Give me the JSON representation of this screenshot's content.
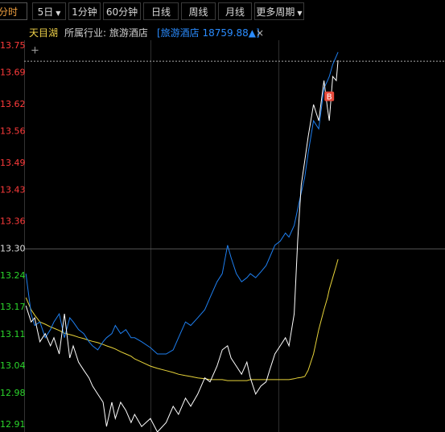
{
  "toolbar": {
    "items": [
      "分时",
      "5日",
      "1分钟",
      "60分钟",
      "日线",
      "周线",
      "月线",
      "更多周期"
    ],
    "selected": 0
  },
  "info": {
    "stock_name": "天目湖",
    "industry_label": "所属行业: 旅游酒店",
    "index_link": "[旅游酒店 18759.88▲]"
  },
  "chart_data": {
    "type": "line",
    "x": [
      1,
      4,
      6,
      9,
      12,
      15,
      17,
      20,
      23,
      26,
      28,
      31,
      34,
      37,
      39,
      42,
      45,
      47,
      50,
      52,
      55,
      58,
      61,
      63,
      67,
      72,
      76,
      81,
      85,
      88,
      92,
      95,
      99,
      103,
      106,
      110,
      113,
      116,
      118,
      121,
      124,
      127,
      129,
      132,
      135,
      138,
      140,
      143,
      146,
      149,
      151,
      154,
      156,
      158,
      160,
      162,
      165,
      168,
      171,
      173,
      174,
      176,
      178,
      179
    ],
    "xlim": [
      0,
      240
    ],
    "xgrid": [
      72,
      145
    ],
    "ylim": [
      12.91,
      13.75
    ],
    "yticks": [
      13.75,
      13.69,
      13.62,
      13.56,
      13.49,
      13.43,
      13.36,
      {
        "value": 13.3,
        "label": "13.30"
      },
      13.24,
      13.17,
      13.11,
      13.04,
      12.98,
      12.91
    ],
    "baseline": 13.3,
    "reference_line": 13.716,
    "up_color": "#ff3b3b",
    "down_color": "#2bd52b",
    "flat_color": "#dddddd",
    "series": [
      {
        "color": "#ffffff",
        "values": [
          13.174,
          13.138,
          13.147,
          13.094,
          13.112,
          13.085,
          13.103,
          13.067,
          13.156,
          13.058,
          13.085,
          13.049,
          13.031,
          13.014,
          12.996,
          12.978,
          12.96,
          12.906,
          12.96,
          12.924,
          12.96,
          12.942,
          12.915,
          12.933,
          12.906,
          12.924,
          12.894,
          12.915,
          12.951,
          12.933,
          12.969,
          12.951,
          12.978,
          13.014,
          13.005,
          13.04,
          13.076,
          13.085,
          13.058,
          13.04,
          13.022,
          13.049,
          13.014,
          12.978,
          12.996,
          13.005,
          13.031,
          13.067,
          13.085,
          13.103,
          13.085,
          13.156,
          13.317,
          13.441,
          13.495,
          13.549,
          13.62,
          13.584,
          13.673,
          13.611,
          13.584,
          13.682,
          13.673,
          13.718
        ]
      },
      {
        "color": "#1e7ff0",
        "values": [
          13.245,
          13.156,
          13.13,
          13.138,
          13.103,
          13.121,
          13.138,
          13.156,
          13.103,
          13.147,
          13.138,
          13.121,
          13.112,
          13.094,
          13.085,
          13.076,
          13.094,
          13.103,
          13.112,
          13.13,
          13.112,
          13.121,
          13.103,
          13.103,
          13.094,
          13.081,
          13.067,
          13.067,
          13.076,
          13.103,
          13.138,
          13.13,
          13.147,
          13.165,
          13.192,
          13.227,
          13.245,
          13.308,
          13.281,
          13.245,
          13.227,
          13.236,
          13.245,
          13.236,
          13.249,
          13.263,
          13.281,
          13.308,
          13.317,
          13.335,
          13.326,
          13.352,
          13.388,
          13.424,
          13.459,
          13.513,
          13.584,
          13.566,
          13.656,
          13.673,
          13.682,
          13.709,
          13.727,
          13.736
        ]
      },
      {
        "color": "#e8d43a",
        "values": [
          13.192,
          13.165,
          13.153,
          13.138,
          13.133,
          13.127,
          13.124,
          13.119,
          13.113,
          13.11,
          13.108,
          13.104,
          13.101,
          13.097,
          13.095,
          13.092,
          13.088,
          13.085,
          13.081,
          13.078,
          13.072,
          13.067,
          13.062,
          13.056,
          13.049,
          13.04,
          13.035,
          13.03,
          13.026,
          13.022,
          13.019,
          13.017,
          13.014,
          13.012,
          13.01,
          13.01,
          13.01,
          13.008,
          13.008,
          13.008,
          13.008,
          13.008,
          13.01,
          13.01,
          13.01,
          13.01,
          13.01,
          13.01,
          13.01,
          13.01,
          13.01,
          13.012,
          13.014,
          13.015,
          13.017,
          13.031,
          13.067,
          13.121,
          13.165,
          13.192,
          13.21,
          13.236,
          13.263,
          13.277
        ]
      }
    ],
    "annotations": [
      {
        "text": "B",
        "x": 174,
        "y": 13.638,
        "color": "#e84a3c"
      }
    ]
  }
}
